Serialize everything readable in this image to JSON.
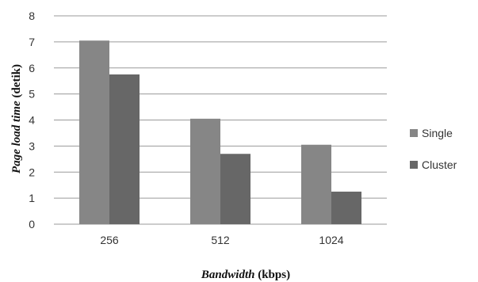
{
  "chart_data": {
    "type": "bar",
    "categories": [
      "256",
      "512",
      "1024"
    ],
    "series": [
      {
        "name": "Single",
        "values": [
          7.05,
          4.05,
          3.05
        ],
        "color": "#868686"
      },
      {
        "name": "Cluster",
        "values": [
          5.75,
          2.7,
          1.25
        ],
        "color": "#676767"
      }
    ],
    "xlabel": {
      "emphasis": "Bandwidth",
      "rest": " (kbps)"
    },
    "ylabel": {
      "emphasis": "Page load time",
      "rest": " (detik)"
    },
    "ylim": [
      0,
      8
    ],
    "yticks": [
      "0",
      "1",
      "2",
      "3",
      "4",
      "5",
      "6",
      "7",
      "8"
    ],
    "grid": true,
    "legend_position": "right"
  }
}
